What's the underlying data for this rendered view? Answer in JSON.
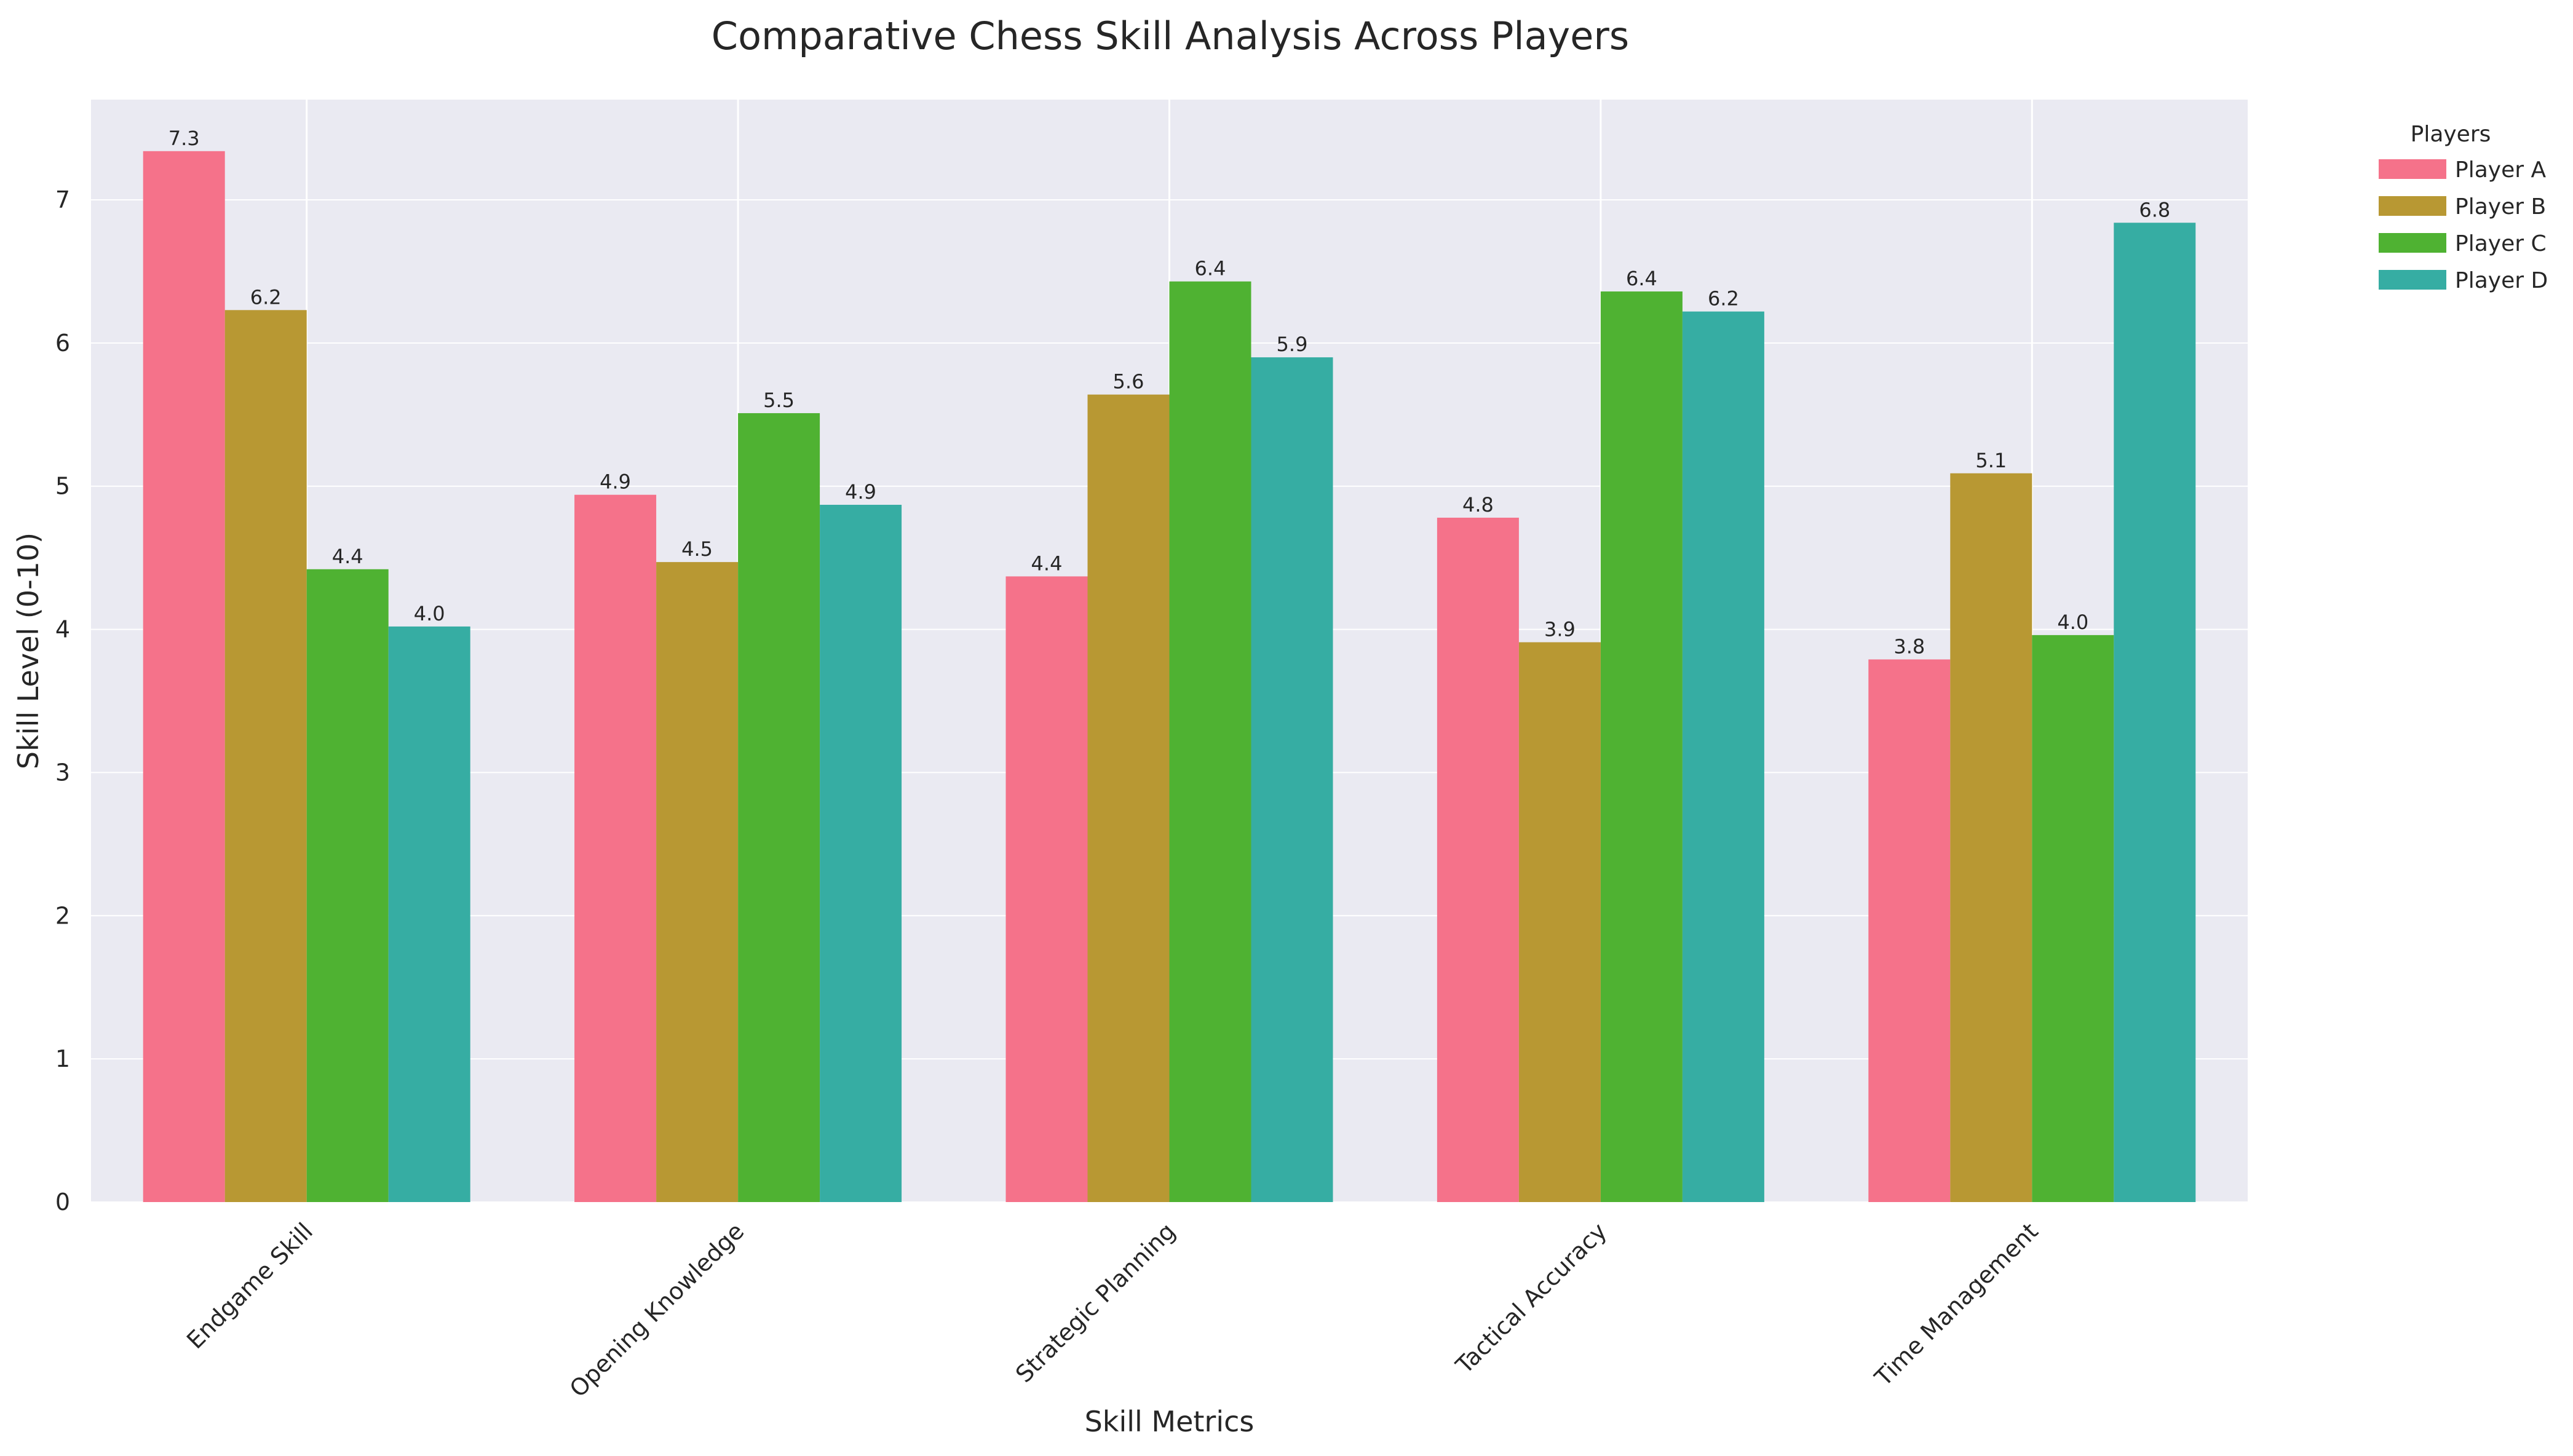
{
  "chart_data": {
    "type": "bar",
    "title": "Comparative Chess Skill Analysis Across Players",
    "xlabel": "Skill Metrics",
    "ylabel": "Skill Level (0-10)",
    "categories": [
      "Endgame Skill",
      "Opening Knowledge",
      "Strategic Planning",
      "Tactical Accuracy",
      "Time Management"
    ],
    "ylim": [
      0,
      7.7
    ],
    "yticks": [
      "0",
      "1",
      "2",
      "3",
      "4",
      "5",
      "6",
      "7"
    ],
    "grid": true,
    "legend": {
      "title": "Players",
      "position": "outside-top-right"
    },
    "series": [
      {
        "name": "Player A",
        "color": "#f5728a",
        "values": [
          7.34,
          4.94,
          4.37,
          4.78,
          3.79
        ],
        "labels": [
          "7.3",
          "4.9",
          "4.4",
          "4.8",
          "3.8"
        ]
      },
      {
        "name": "Player B",
        "color": "#b89833",
        "values": [
          6.23,
          4.47,
          5.64,
          3.91,
          5.09
        ],
        "labels": [
          "6.2",
          "4.5",
          "5.6",
          "3.9",
          "5.1"
        ]
      },
      {
        "name": "Player C",
        "color": "#4fb232",
        "values": [
          4.42,
          5.51,
          6.43,
          6.36,
          3.96
        ],
        "labels": [
          "4.4",
          "5.5",
          "6.4",
          "6.4",
          "4.0"
        ]
      },
      {
        "name": "Player D",
        "color": "#36ada3",
        "values": [
          4.02,
          4.87,
          5.9,
          6.22,
          6.84
        ],
        "labels": [
          "4.0",
          "4.9",
          "5.9",
          "6.2",
          "6.8"
        ]
      }
    ]
  }
}
